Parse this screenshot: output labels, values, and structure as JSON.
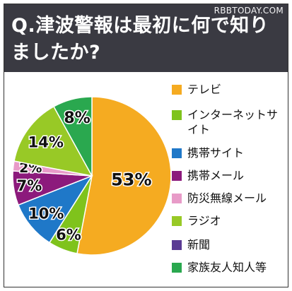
{
  "watermark": "RBBTODAY.COM",
  "header": {
    "title": "Q.津波警報は最初に何で知りましたか?"
  },
  "chart_data": {
    "type": "pie",
    "title": "Q.津波警報は最初に何で知りましたか?",
    "start": "12 o'clock",
    "direction": "clockwise",
    "legend_position": "right",
    "categories": [
      "テレビ",
      "インターネットサイト",
      "携帯サイト",
      "携帯メール",
      "防災無線メール",
      "ラジオ",
      "新聞",
      "家族友人知人等"
    ],
    "values": [
      53,
      6,
      10,
      7,
      2,
      14,
      0,
      8
    ],
    "labels": [
      "53%",
      "6%",
      "10%",
      "7%",
      "2%",
      "14%",
      "",
      "8%"
    ],
    "colors": [
      "#f5ab21",
      "#7fc31c",
      "#1f78c8",
      "#8c1a7c",
      "#e89bc8",
      "#98c926",
      "#5a3a93",
      "#2aa84f"
    ],
    "legend": [
      {
        "label": "テレビ",
        "color": "#f5ab21"
      },
      {
        "label": "インターネットサイト",
        "color": "#7fc31c"
      },
      {
        "label": "携帯サイト",
        "color": "#1f78c8"
      },
      {
        "label": "携帯メール",
        "color": "#8c1a7c"
      },
      {
        "label": "防災無線メール",
        "color": "#e89bc8"
      },
      {
        "label": "ラジオ",
        "color": "#98c926"
      },
      {
        "label": "新聞",
        "color": "#5a3a93"
      },
      {
        "label": "家族友人知人等",
        "color": "#2aa84f"
      }
    ]
  }
}
